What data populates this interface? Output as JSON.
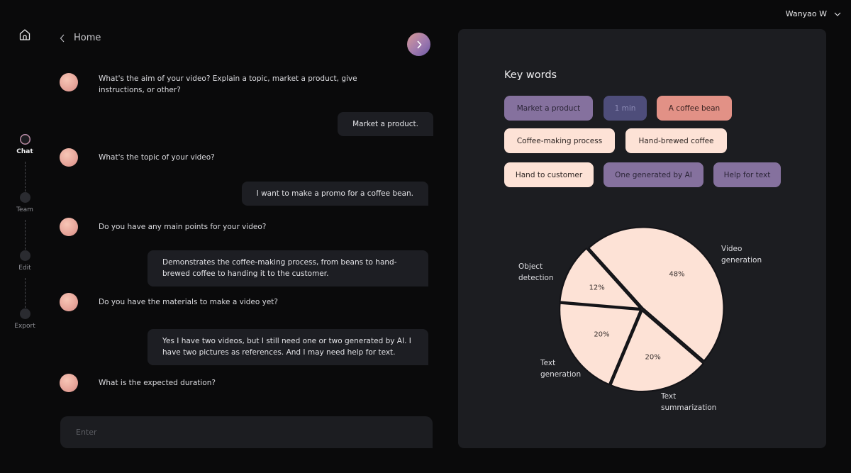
{
  "user": {
    "name": "Wanyao W"
  },
  "header": {
    "back_label": "Home"
  },
  "steps": [
    {
      "label": "Chat",
      "active": true
    },
    {
      "label": "Team",
      "active": false
    },
    {
      "label": "Edit",
      "active": false
    },
    {
      "label": "Export",
      "active": false
    }
  ],
  "chat": {
    "messages": [
      {
        "role": "bot",
        "text": "What's the aim of your video? Explain a topic, market a product, give instructions, or other?"
      },
      {
        "role": "user",
        "text": "Market a product."
      },
      {
        "role": "bot",
        "text": "What's the topic of your video?"
      },
      {
        "role": "user",
        "text": "I want to make a promo for a coffee bean."
      },
      {
        "role": "bot",
        "text": "Do you have any main points for your video?"
      },
      {
        "role": "user",
        "text": "Demonstrates the coffee-making process, from beans to hand-brewed coffee to handing it to the customer."
      },
      {
        "role": "bot",
        "text": "Do you have the materials to make a video yet?"
      },
      {
        "role": "user",
        "text": "Yes I have two videos, but I still need one or two generated by AI. I have two pictures as references. And I may need help for text."
      },
      {
        "role": "bot",
        "text": "What is the expected duration?"
      }
    ],
    "input": {
      "placeholder": "Enter",
      "value": ""
    }
  },
  "keywords": {
    "title": "Key words",
    "chips": [
      {
        "label": "Market a product",
        "style": "purple"
      },
      {
        "label": "1 min",
        "style": "navy"
      },
      {
        "label": "A coffee bean",
        "style": "coral"
      },
      {
        "label": "Coffee-making process",
        "style": "peach"
      },
      {
        "label": "Hand-brewed coffee",
        "style": "peach"
      },
      {
        "label": "Hand to customer",
        "style": "peach"
      },
      {
        "label": "One generated by AI",
        "style": "purple"
      },
      {
        "label": "Help for text",
        "style": "purple"
      }
    ]
  },
  "colors": {
    "background": "#0a0a0b",
    "panel": "#1c1d21",
    "bubble": "#1d1e23",
    "chip_purple": "#85719e",
    "chip_navy": "#4e4d7a",
    "chip_coral": "#e29186",
    "chip_peach": "#fde2d6",
    "pie_fill": "#fde2d6"
  },
  "chart_data": {
    "type": "pie",
    "title": "",
    "labels": [
      "Video generation",
      "Text summarization",
      "Text generation",
      "Object detection"
    ],
    "values": [
      48,
      20,
      20,
      12
    ],
    "value_labels": [
      "48%",
      "20%",
      "20%",
      "12%"
    ],
    "legend": "inline labels outside slices"
  }
}
